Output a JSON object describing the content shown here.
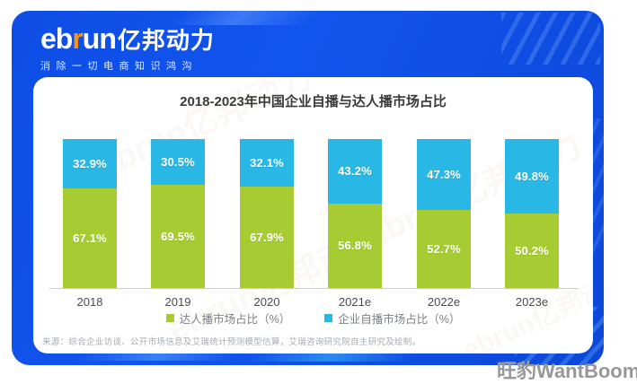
{
  "logo": {
    "brand_prefix": "eb",
    "brand_accent": "r",
    "brand_suffix": "un",
    "brand_cn": "亿邦动力",
    "tagline": "消除一切电商知识鸿沟"
  },
  "chart_data": {
    "type": "bar",
    "stacked": true,
    "title": "2018-2023年中国企业自播与达人播市场占比",
    "categories": [
      "2018",
      "2019",
      "2020",
      "2021e",
      "2022e",
      "2023e"
    ],
    "series": [
      {
        "name": "达人播市场占比（%）",
        "color": "#a6cb33",
        "position": "bottom",
        "values": [
          67.1,
          69.5,
          67.9,
          56.8,
          52.7,
          50.2
        ]
      },
      {
        "name": "企业自播市场占比（%）",
        "color": "#29b7e6",
        "position": "top",
        "values": [
          32.9,
          30.5,
          32.1,
          43.2,
          47.3,
          49.8
        ]
      }
    ],
    "value_suffix": "%",
    "ylim": [
      0,
      100
    ],
    "grid": false,
    "legend_position": "bottom",
    "xlabel": "",
    "ylabel": ""
  },
  "source_note": "来源：综合企业访谈、公开市场信息及艾瑞统计预测模型估算，艾瑞咨询研究院自主研究及绘制。",
  "bottom_watermark": "旺豹WantBoom",
  "decor": {
    "card_watermark": "ebrun亿邦动力"
  },
  "colors": {
    "banner_blue": "#1254ee",
    "accent_orange": "#f7941d",
    "bar_green": "#a6cb33",
    "bar_blue": "#29b7e6",
    "page_background": "#ffffff"
  }
}
